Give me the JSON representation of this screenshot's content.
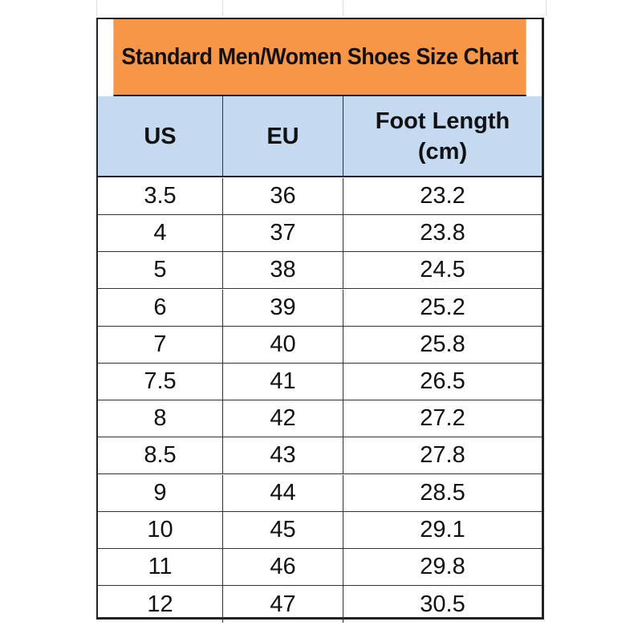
{
  "chart_data": {
    "type": "table",
    "title": "Standard Men/Women Shoes Size Chart",
    "columns": [
      "US",
      "EU",
      "Foot Length (cm)"
    ],
    "column_lines": [
      [
        "US"
      ],
      [
        "EU"
      ],
      [
        "Foot Length",
        "(cm)"
      ]
    ],
    "rows": [
      [
        "3.5",
        "36",
        "23.2"
      ],
      [
        "4",
        "37",
        "23.8"
      ],
      [
        "5",
        "38",
        "24.5"
      ],
      [
        "6",
        "39",
        "25.2"
      ],
      [
        "7",
        "40",
        "25.8"
      ],
      [
        "7.5",
        "41",
        "26.5"
      ],
      [
        "8",
        "42",
        "27.2"
      ],
      [
        "8.5",
        "43",
        "27.8"
      ],
      [
        "9",
        "44",
        "28.5"
      ],
      [
        "10",
        "45",
        "29.1"
      ],
      [
        "11",
        "46",
        "29.8"
      ],
      [
        "12",
        "47",
        "30.5"
      ]
    ],
    "colors": {
      "title_bg": "#f79646",
      "header_bg": "#c5d9f1",
      "border": "#222222"
    }
  }
}
